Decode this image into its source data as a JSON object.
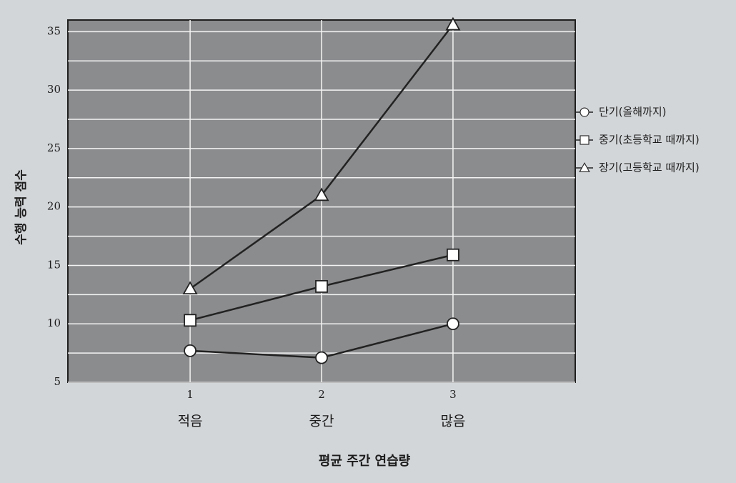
{
  "chart_data": {
    "type": "line",
    "x": [
      1,
      2,
      3
    ],
    "categories": [
      "적음",
      "중간",
      "많음"
    ],
    "xlim": [
      0.07,
      3.93
    ],
    "xticks": [
      1,
      2,
      3
    ],
    "ylim": [
      5,
      36
    ],
    "yticks": [
      5,
      10,
      15,
      20,
      25,
      30,
      35
    ],
    "yminor": [
      7.5,
      12.5,
      17.5,
      22.5,
      27.5,
      32.5
    ],
    "grid": true,
    "y_label": "수행 능력 점수",
    "x_label": "평균 주간 연습량",
    "legend": "right",
    "series": [
      {
        "name": "단기(올해까지)",
        "color": "#222222",
        "marker": "circle",
        "values": [
          7.7,
          7.1,
          10.0
        ]
      },
      {
        "name": "중기(초등학교 때까지)",
        "color": "#222222",
        "marker": "square",
        "values": [
          10.3,
          13.2,
          15.9
        ]
      },
      {
        "name": "장기(고등학교 때까지)",
        "color": "#222222",
        "marker": "triangle",
        "values": [
          13.0,
          21.0,
          35.6
        ]
      }
    ]
  }
}
